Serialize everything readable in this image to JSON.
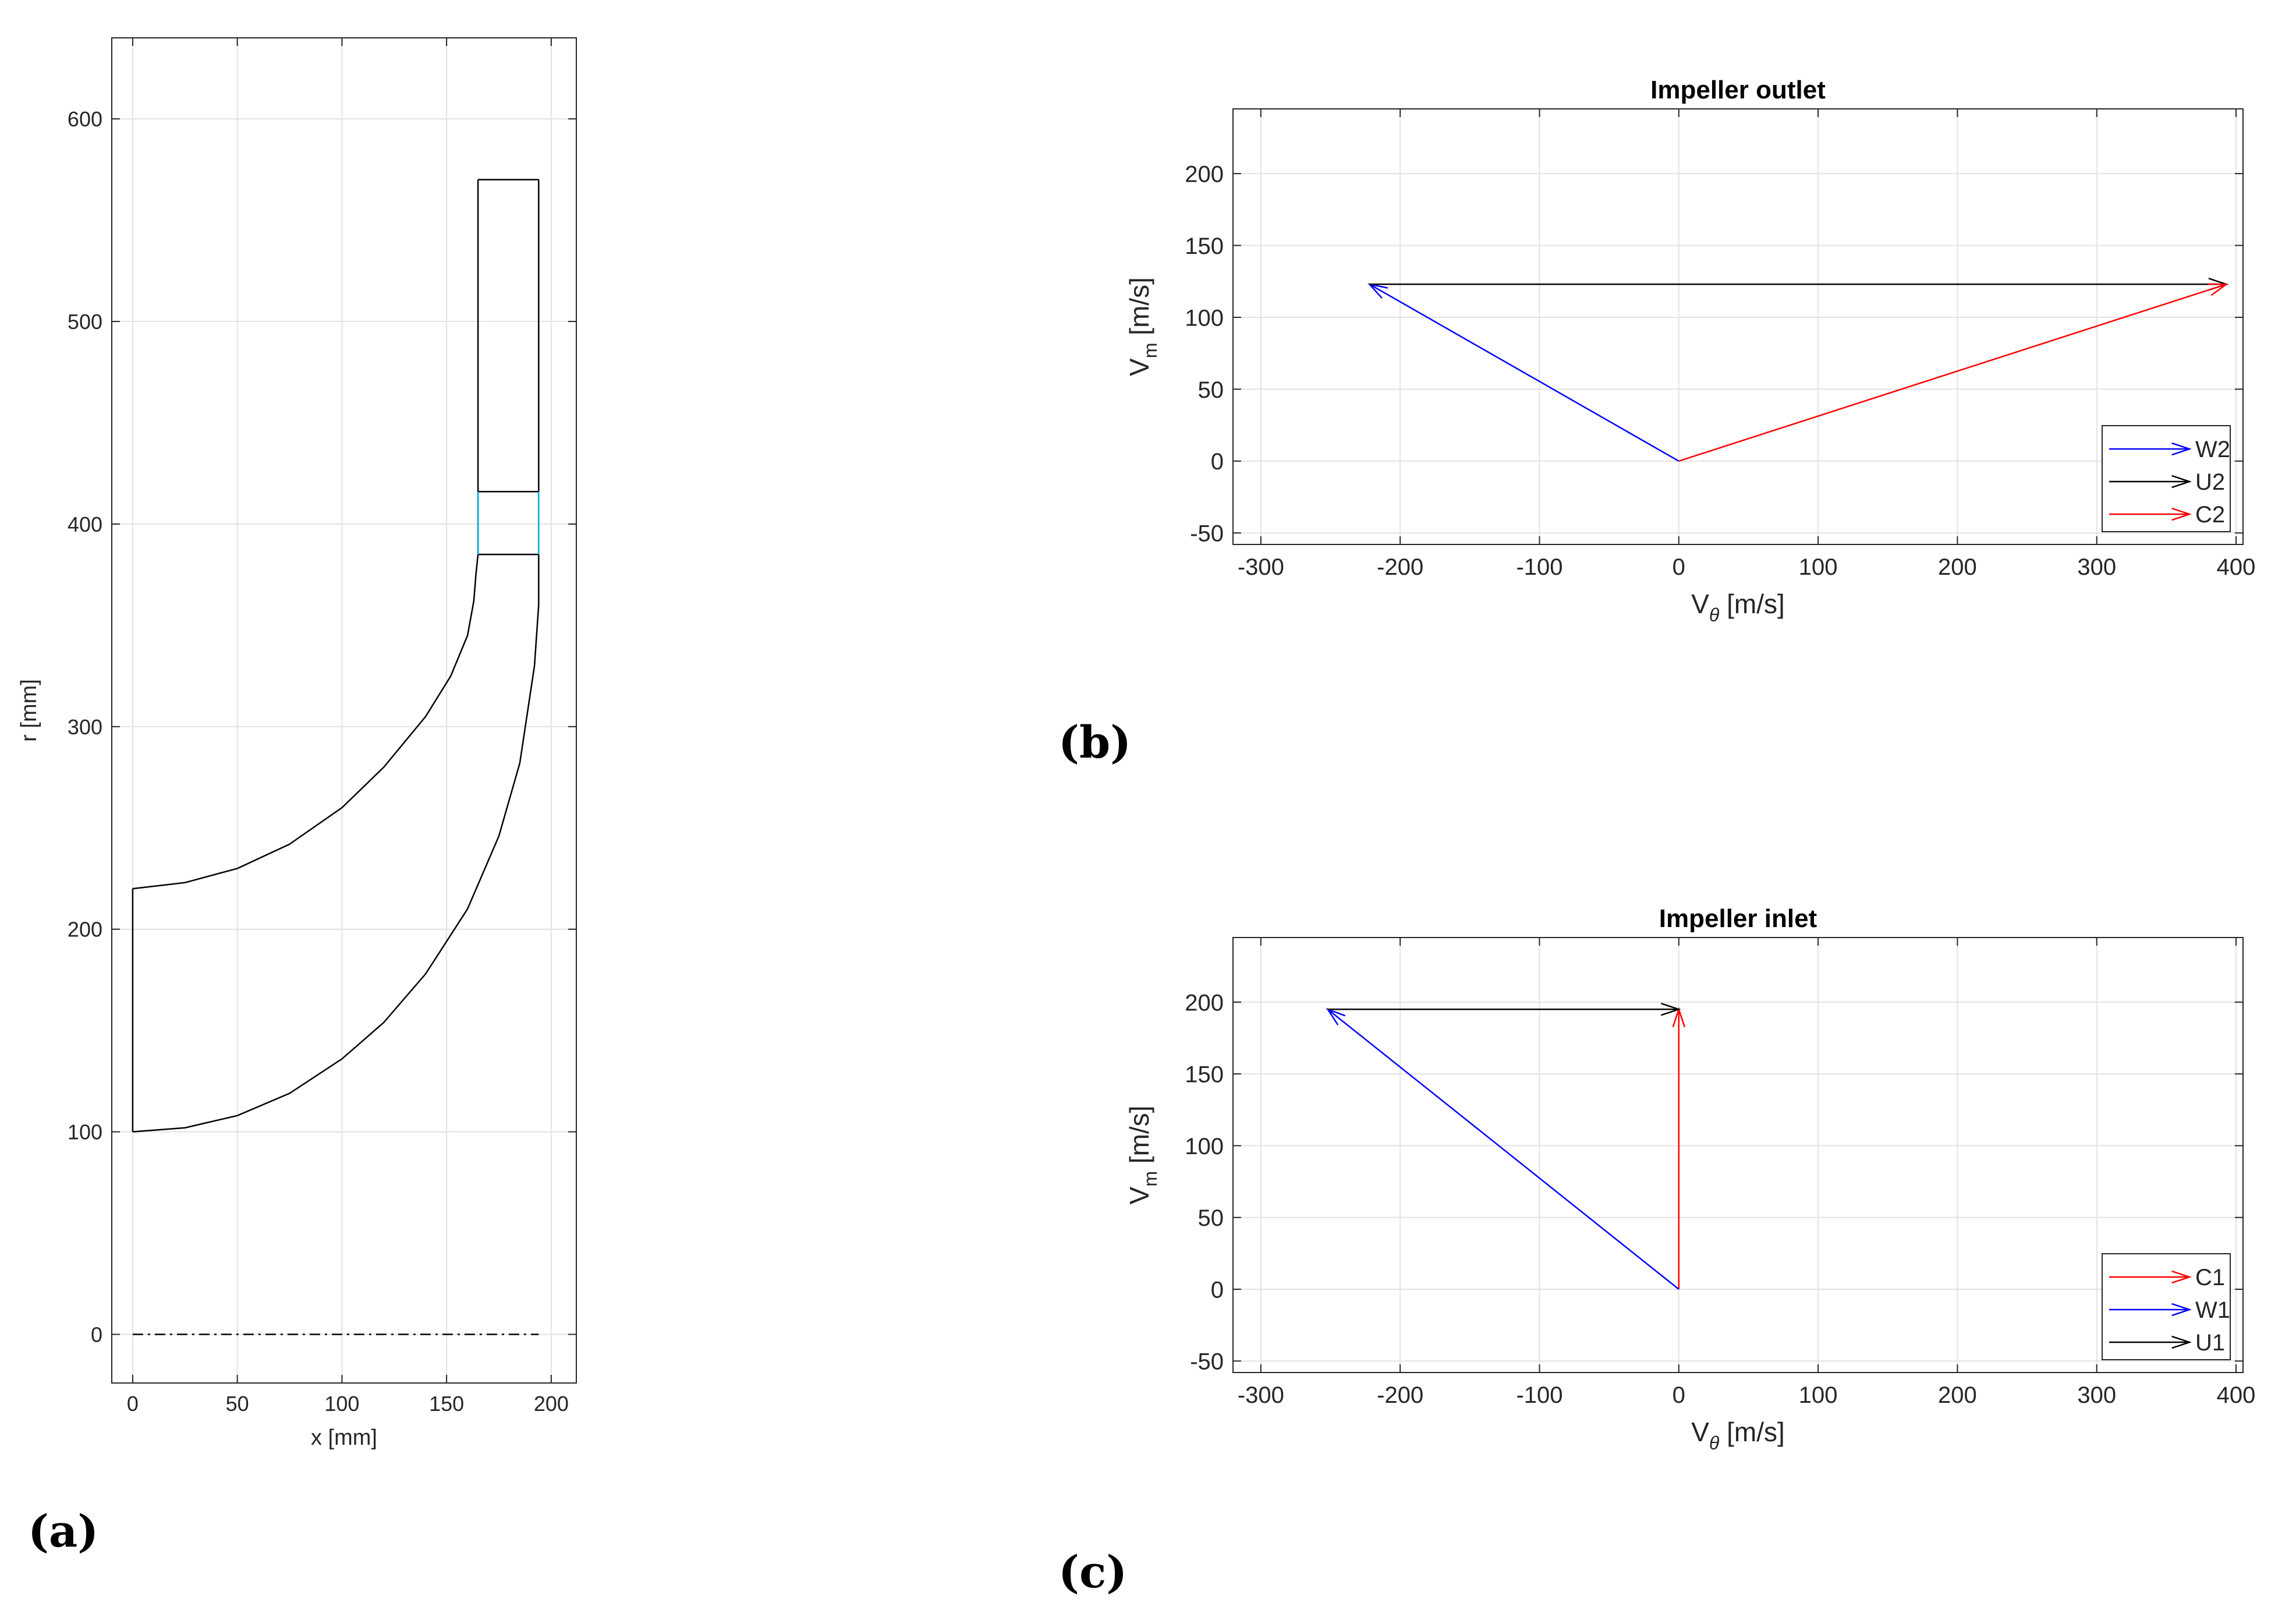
{
  "panel_labels": {
    "a": "(a)",
    "b": "(b)",
    "c": "(c)"
  },
  "colors": {
    "blue": "#0000ff",
    "red": "#ff0000",
    "black": "#000000",
    "cyan": "#00b4e6",
    "grid": "#e3e3e3"
  },
  "chart_data": [
    {
      "id": "a",
      "type": "line",
      "title": "",
      "xlabel": "x [mm]",
      "ylabel": "r [mm]",
      "xlim": [
        -10,
        212
      ],
      "ylim": [
        -24,
        640
      ],
      "xticks": [
        0,
        50,
        100,
        150,
        200
      ],
      "yticks": [
        0,
        100,
        200,
        300,
        400,
        500,
        600
      ],
      "grid": true,
      "series": [
        {
          "name": "hub",
          "color": "#000000",
          "dash": "",
          "points": [
            [
              0,
              100
            ],
            [
              25,
              102
            ],
            [
              50,
              108
            ],
            [
              75,
              119
            ],
            [
              100,
              136
            ],
            [
              120,
              154
            ],
            [
              140,
              178
            ],
            [
              160,
              210
            ],
            [
              175,
              246
            ],
            [
              185,
              282
            ],
            [
              192,
              330
            ],
            [
              194,
              360
            ],
            [
              194,
              385
            ]
          ]
        },
        {
          "name": "shroud",
          "color": "#000000",
          "dash": "",
          "points": [
            [
              0,
              220
            ],
            [
              25,
              223
            ],
            [
              50,
              230
            ],
            [
              75,
              242
            ],
            [
              100,
              260
            ],
            [
              120,
              280
            ],
            [
              140,
              305
            ],
            [
              152,
              325
            ],
            [
              160,
              345
            ],
            [
              163,
              362
            ],
            [
              164,
              375
            ],
            [
              165,
              385
            ]
          ]
        },
        {
          "name": "inlet",
          "color": "#000000",
          "dash": "",
          "points": [
            [
              0,
              100
            ],
            [
              0,
              220
            ]
          ]
        },
        {
          "name": "diffuser-hub",
          "color": "#000000",
          "dash": "",
          "points": [
            [
              194,
              385
            ],
            [
              194,
              570
            ]
          ]
        },
        {
          "name": "diffuser-shroud",
          "color": "#000000",
          "dash": "",
          "points": [
            [
              165,
              385
            ],
            [
              165,
              570
            ]
          ]
        },
        {
          "name": "diffuser-outlet",
          "color": "#000000",
          "dash": "",
          "points": [
            [
              165,
              570
            ],
            [
              194,
              570
            ]
          ]
        },
        {
          "name": "impeller-exit",
          "color": "#000000",
          "dash": "",
          "points": [
            [
              165,
              385
            ],
            [
              194,
              385
            ]
          ]
        },
        {
          "name": "vaneless-exit",
          "color": "#000000",
          "dash": "",
          "points": [
            [
              165,
              416
            ],
            [
              194,
              416
            ]
          ]
        },
        {
          "name": "gap-shroud",
          "color": "#00b4e6",
          "dash": "",
          "points": [
            [
              165,
              385
            ],
            [
              165,
              416
            ]
          ]
        },
        {
          "name": "gap-hub",
          "color": "#00b4e6",
          "dash": "",
          "points": [
            [
              194,
              385
            ],
            [
              194,
              416
            ]
          ]
        },
        {
          "name": "axis",
          "color": "#000000",
          "dash": "dashdot",
          "points": [
            [
              0,
              0
            ],
            [
              194,
              0
            ]
          ]
        }
      ]
    },
    {
      "id": "b",
      "type": "quiver",
      "title": "Impeller outlet",
      "xlabel": "V",
      "xlabel_sub": "θ",
      "xlabel_unit": " [m/s]",
      "ylabel": "V",
      "ylabel_sub": "m",
      "ylabel_unit": " [m/s]",
      "xlim": [
        -320,
        405
      ],
      "ylim": [
        -58,
        245
      ],
      "xticks": [
        -300,
        -200,
        -100,
        0,
        100,
        200,
        300,
        400
      ],
      "yticks": [
        -50,
        0,
        50,
        100,
        150,
        200
      ],
      "grid": true,
      "vectors": [
        {
          "name": "W2",
          "x0": 0,
          "y0": 0,
          "x1": -222,
          "y1": 123,
          "color": "#0000ff"
        },
        {
          "name": "U2",
          "x0": -222,
          "y0": 123,
          "x1": 393,
          "y1": 123,
          "color": "#000000"
        },
        {
          "name": "C2",
          "x0": 0,
          "y0": 0,
          "x1": 393,
          "y1": 123,
          "color": "#ff0000"
        }
      ],
      "legend": [
        "W2",
        "U2",
        "C2"
      ],
      "legend_colors": [
        "#0000ff",
        "#000000",
        "#ff0000"
      ],
      "legend_position": "bottom-right"
    },
    {
      "id": "c",
      "type": "quiver",
      "title": "Impeller inlet",
      "xlabel": "V",
      "xlabel_sub": "θ",
      "xlabel_unit": " [m/s]",
      "ylabel": "V",
      "ylabel_sub": "m",
      "ylabel_unit": " [m/s]",
      "xlim": [
        -320,
        405
      ],
      "ylim": [
        -58,
        245
      ],
      "xticks": [
        -300,
        -200,
        -100,
        0,
        100,
        200,
        300,
        400
      ],
      "yticks": [
        -50,
        0,
        50,
        100,
        150,
        200
      ],
      "grid": true,
      "vectors": [
        {
          "name": "C1",
          "x0": 0,
          "y0": 0,
          "x1": 0,
          "y1": 195,
          "color": "#ff0000"
        },
        {
          "name": "W1",
          "x0": 0,
          "y0": 0,
          "x1": -252,
          "y1": 195,
          "color": "#0000ff"
        },
        {
          "name": "U1",
          "x0": -252,
          "y0": 195,
          "x1": 0,
          "y1": 195,
          "color": "#000000"
        }
      ],
      "legend": [
        "C1",
        "W1",
        "U1"
      ],
      "legend_colors": [
        "#ff0000",
        "#0000ff",
        "#000000"
      ],
      "legend_position": "bottom-right"
    }
  ]
}
